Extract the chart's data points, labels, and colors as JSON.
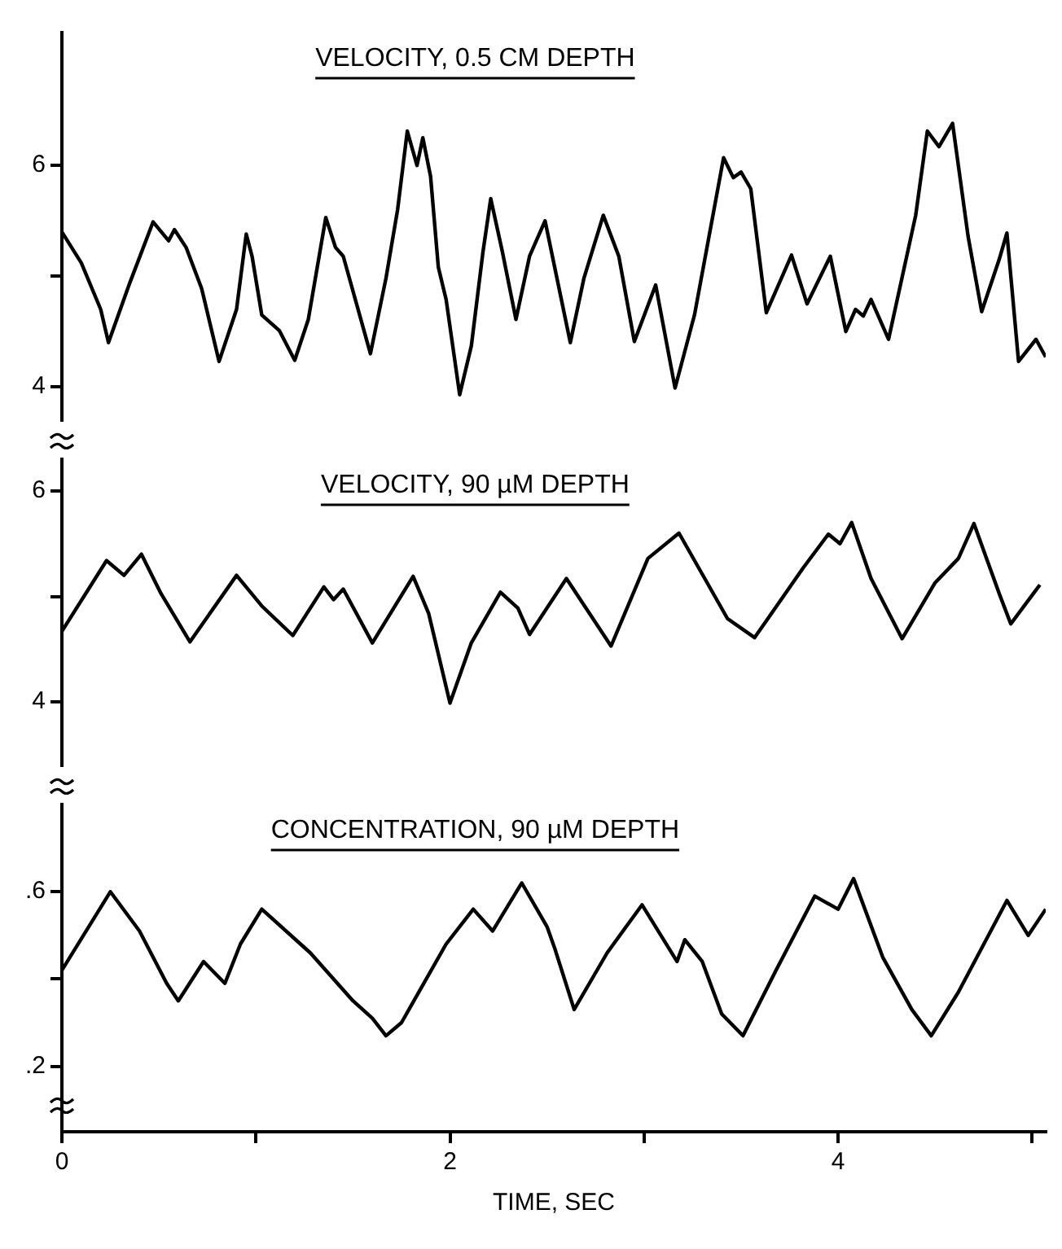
{
  "chart_data": [
    {
      "type": "line",
      "title": "VELOCITY, 0.5 CM DEPTH",
      "color": "#000000",
      "marker": "none",
      "tick_labels": "y",
      "xlim": [
        0,
        5.07
      ],
      "ylim": [
        3.7,
        7.2
      ],
      "yticks": [
        {
          "value": 4,
          "label": "4"
        },
        {
          "value": 5,
          "label": null
        },
        {
          "value": 6,
          "label": "6"
        }
      ],
      "x": [
        0,
        0.1,
        0.2,
        0.24,
        0.35,
        0.47,
        0.55,
        0.58,
        0.64,
        0.72,
        0.81,
        0.9,
        0.95,
        0.98,
        1.03,
        1.12,
        1.2,
        1.27,
        1.36,
        1.41,
        1.45,
        1.59,
        1.67,
        1.73,
        1.78,
        1.83,
        1.86,
        1.9,
        1.94,
        1.98,
        2.05,
        2.11,
        2.17,
        2.21,
        2.27,
        2.34,
        2.41,
        2.49,
        2.62,
        2.69,
        2.79,
        2.87,
        2.95,
        3.06,
        3.16,
        3.26,
        3.41,
        3.46,
        3.5,
        3.55,
        3.63,
        3.76,
        3.84,
        3.96,
        4.04,
        4.09,
        4.13,
        4.17,
        4.26,
        4.4,
        4.46,
        4.52,
        4.59,
        4.67,
        4.74,
        4.83,
        4.87,
        4.93,
        5.02,
        5.07
      ],
      "values": [
        5.4,
        5.12,
        4.7,
        4.4,
        4.94,
        5.49,
        5.32,
        5.42,
        5.26,
        4.89,
        4.23,
        4.7,
        5.38,
        5.18,
        4.65,
        4.51,
        4.24,
        4.61,
        5.53,
        5.26,
        5.18,
        4.3,
        4.98,
        5.6,
        6.31,
        6.0,
        6.25,
        5.9,
        5.08,
        4.79,
        3.93,
        4.37,
        5.22,
        5.7,
        5.22,
        4.61,
        5.18,
        5.5,
        4.4,
        4.98,
        5.55,
        5.18,
        4.41,
        4.92,
        3.99,
        4.65,
        6.07,
        5.89,
        5.94,
        5.79,
        4.67,
        5.19,
        4.75,
        5.18,
        4.5,
        4.7,
        4.64,
        4.79,
        4.43,
        5.55,
        6.31,
        6.17,
        6.38,
        5.36,
        4.68,
        5.15,
        5.39,
        4.23,
        4.43,
        4.27
      ]
    },
    {
      "type": "line",
      "title": "VELOCITY, 90 µM DEPTH",
      "color": "#000000",
      "marker": "none",
      "tick_labels": "y",
      "xlim": [
        0,
        5.07
      ],
      "ylim": [
        3.4,
        6.3
      ],
      "yticks": [
        {
          "value": 4,
          "label": "4"
        },
        {
          "value": 5,
          "label": null
        },
        {
          "value": 6,
          "label": "6"
        }
      ],
      "x": [
        0,
        0.23,
        0.32,
        0.41,
        0.51,
        0.66,
        0.9,
        1.03,
        1.19,
        1.35,
        1.4,
        1.45,
        1.6,
        1.81,
        1.89,
        2.0,
        2.11,
        2.26,
        2.35,
        2.41,
        2.6,
        2.83,
        3.02,
        3.18,
        3.43,
        3.57,
        3.82,
        3.95,
        4.01,
        4.07,
        4.17,
        4.33,
        4.5,
        4.62,
        4.7,
        4.83,
        4.89,
        5.04
      ],
      "values": [
        4.67,
        5.34,
        5.2,
        5.4,
        5.03,
        4.57,
        5.2,
        4.91,
        4.63,
        5.09,
        4.97,
        5.07,
        4.56,
        5.19,
        4.84,
        3.99,
        4.56,
        5.04,
        4.89,
        4.64,
        5.17,
        4.53,
        5.36,
        5.6,
        4.79,
        4.61,
        5.27,
        5.59,
        5.5,
        5.7,
        5.17,
        4.6,
        5.13,
        5.36,
        5.69,
        5.03,
        4.74,
        5.11
      ]
    },
    {
      "type": "line",
      "title": "CONCENTRATION, 90 µM DEPTH",
      "xlabel": "TIME, SEC",
      "color": "#000000",
      "marker": "none",
      "xlim": [
        0,
        5.07
      ],
      "ylim": [
        0.05,
        0.8
      ],
      "xticks": [
        0,
        {
          "value": 1,
          "label": null
        },
        2,
        {
          "value": 3,
          "label": null
        },
        4,
        {
          "value": 5,
          "label": null
        }
      ],
      "yticks": [
        {
          "value": 0.2,
          "label": ".2"
        },
        {
          "value": 0.4,
          "label": null
        },
        {
          "value": 0.6,
          "label": ".6"
        }
      ],
      "x": [
        0,
        0.25,
        0.4,
        0.54,
        0.6,
        0.73,
        0.84,
        0.92,
        1.03,
        1.28,
        1.5,
        1.6,
        1.67,
        1.75,
        1.98,
        2.12,
        2.22,
        2.37,
        2.5,
        2.54,
        2.64,
        2.81,
        2.99,
        3.17,
        3.21,
        3.3,
        3.4,
        3.51,
        3.68,
        3.88,
        4.0,
        4.08,
        4.23,
        4.38,
        4.48,
        4.62,
        4.87,
        4.98,
        5.07
      ],
      "values": [
        0.42,
        0.6,
        0.51,
        0.39,
        0.35,
        0.44,
        0.39,
        0.48,
        0.56,
        0.46,
        0.35,
        0.31,
        0.27,
        0.3,
        0.48,
        0.56,
        0.51,
        0.62,
        0.52,
        0.47,
        0.33,
        0.46,
        0.57,
        0.44,
        0.49,
        0.44,
        0.32,
        0.27,
        0.42,
        0.59,
        0.56,
        0.63,
        0.45,
        0.33,
        0.27,
        0.37,
        0.58,
        0.5,
        0.56
      ]
    }
  ]
}
